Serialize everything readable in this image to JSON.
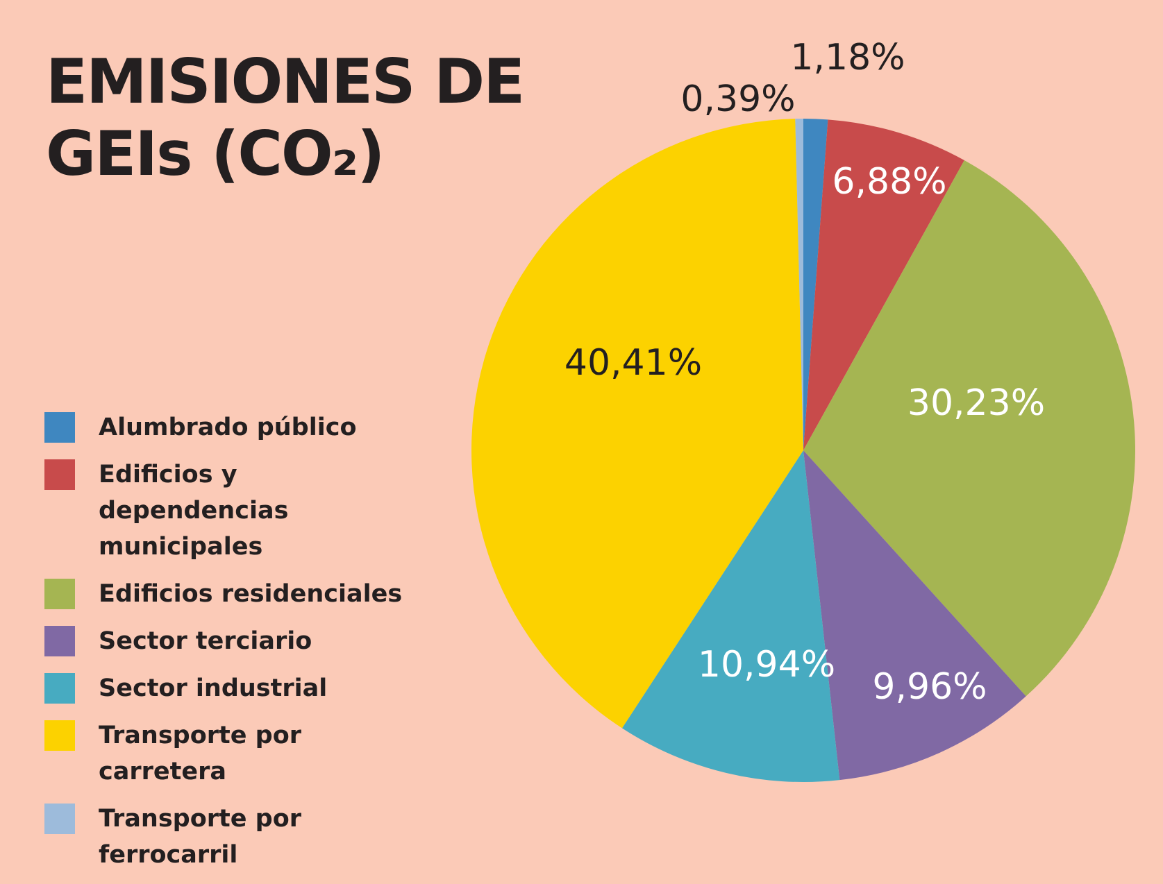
{
  "chart_data": {
    "type": "pie",
    "title": [
      "EMISIONES DE",
      "GEIs (CO₂)"
    ],
    "categories": [
      "Alumbrado público",
      "Edificios y dependencias municipales",
      "Edificios residenciales",
      "Sector terciario",
      "Sector industrial",
      "Transporte por carretera",
      "Transporte por ferrocarril"
    ],
    "values": [
      1.18,
      6.88,
      30.23,
      9.96,
      10.94,
      40.41,
      0.39
    ],
    "value_labels": [
      "1,18%",
      "6,88%",
      "30,23%",
      "9,96%",
      "10,94%",
      "40,41%",
      "0,39%"
    ],
    "colors": [
      "#3f87c0",
      "#c84b4b",
      "#a5b552",
      "#8069a4",
      "#47abc1",
      "#fcd200",
      "#9dbbdb"
    ]
  }
}
